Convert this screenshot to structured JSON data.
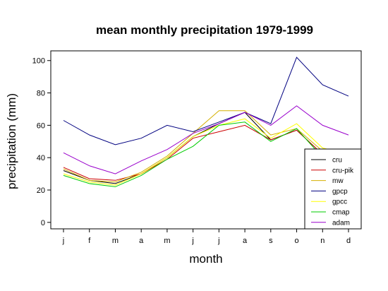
{
  "chart_data": {
    "type": "line",
    "title": "mean monthly precipitation 1979-1999",
    "xlabel": "month",
    "ylabel": "precipitation (mm)",
    "categories": [
      "j",
      "f",
      "m",
      "a",
      "m",
      "j",
      "j",
      "a",
      "s",
      "o",
      "n",
      "d"
    ],
    "ylim": [
      -4,
      106
    ],
    "yticks": [
      0,
      20,
      40,
      60,
      80,
      100
    ],
    "grid": false,
    "legend_position": "bottom-right",
    "series": [
      {
        "name": "cru",
        "color": "#000000",
        "values": [
          32,
          26,
          24,
          30,
          40,
          53,
          61,
          68,
          51,
          57,
          42,
          40
        ]
      },
      {
        "name": "cru-pik",
        "color": "#cc0000",
        "values": [
          34,
          27,
          26,
          30,
          39,
          52,
          56,
          60,
          51,
          57,
          42,
          40
        ]
      },
      {
        "name": "mw",
        "color": "#d4b000",
        "values": [
          33,
          26,
          25,
          31,
          41,
          55,
          69,
          69,
          54,
          58,
          44,
          41
        ]
      },
      {
        "name": "gpcp",
        "color": "#000080",
        "values": [
          63,
          54,
          48,
          52,
          60,
          56,
          62,
          68,
          61,
          102,
          85,
          78
        ]
      },
      {
        "name": "gpcc",
        "color": "#ffff00",
        "values": [
          30,
          25,
          23,
          30,
          40,
          53,
          60,
          64,
          52,
          61,
          46,
          42
        ]
      },
      {
        "name": "cmap",
        "color": "#00cc00",
        "values": [
          29,
          24,
          22,
          29,
          39,
          47,
          60,
          62,
          50,
          58,
          40,
          38
        ]
      },
      {
        "name": "adam",
        "color": "#9900cc",
        "values": [
          43,
          35,
          30,
          38,
          45,
          55,
          61,
          68,
          60,
          72,
          60,
          54
        ]
      }
    ]
  }
}
